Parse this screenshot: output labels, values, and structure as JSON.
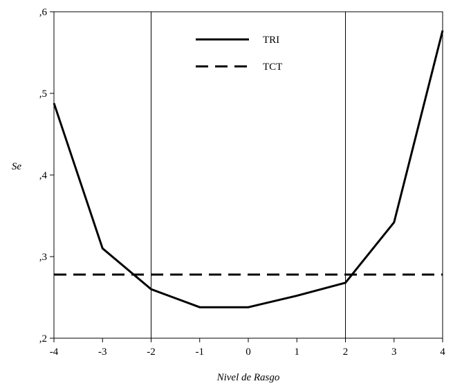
{
  "chart_data": {
    "type": "line",
    "title": "",
    "xlabel": "Nivel de Rasgo",
    "ylabel": "Se",
    "xlim": [
      -4,
      4
    ],
    "ylim": [
      0.2,
      0.6
    ],
    "x_ticks": [
      -4,
      -3,
      -2,
      -1,
      0,
      1,
      2,
      3,
      4
    ],
    "x_tick_labels": [
      "-4",
      "-3",
      "-2",
      "-1",
      "0",
      "1",
      "2",
      "3",
      "4"
    ],
    "y_ticks": [
      0.2,
      0.3,
      0.4,
      0.5,
      0.6
    ],
    "y_tick_labels": [
      ",2",
      ",3",
      ",4",
      ",5",
      ",6"
    ],
    "vertical_gridlines_at": [
      -2,
      2
    ],
    "legend_position": "top-center",
    "series": [
      {
        "name": "TRI",
        "style": "solid",
        "color": "#000000",
        "x": [
          -4,
          -3,
          -2,
          -1,
          0,
          1,
          2,
          3,
          4
        ],
        "y": [
          0.488,
          0.31,
          0.26,
          0.238,
          0.238,
          0.252,
          0.268,
          0.342,
          0.577
        ]
      },
      {
        "name": "TCT",
        "style": "dashed",
        "color": "#000000",
        "x": [
          -4,
          4
        ],
        "y": [
          0.278,
          0.278
        ]
      }
    ]
  }
}
